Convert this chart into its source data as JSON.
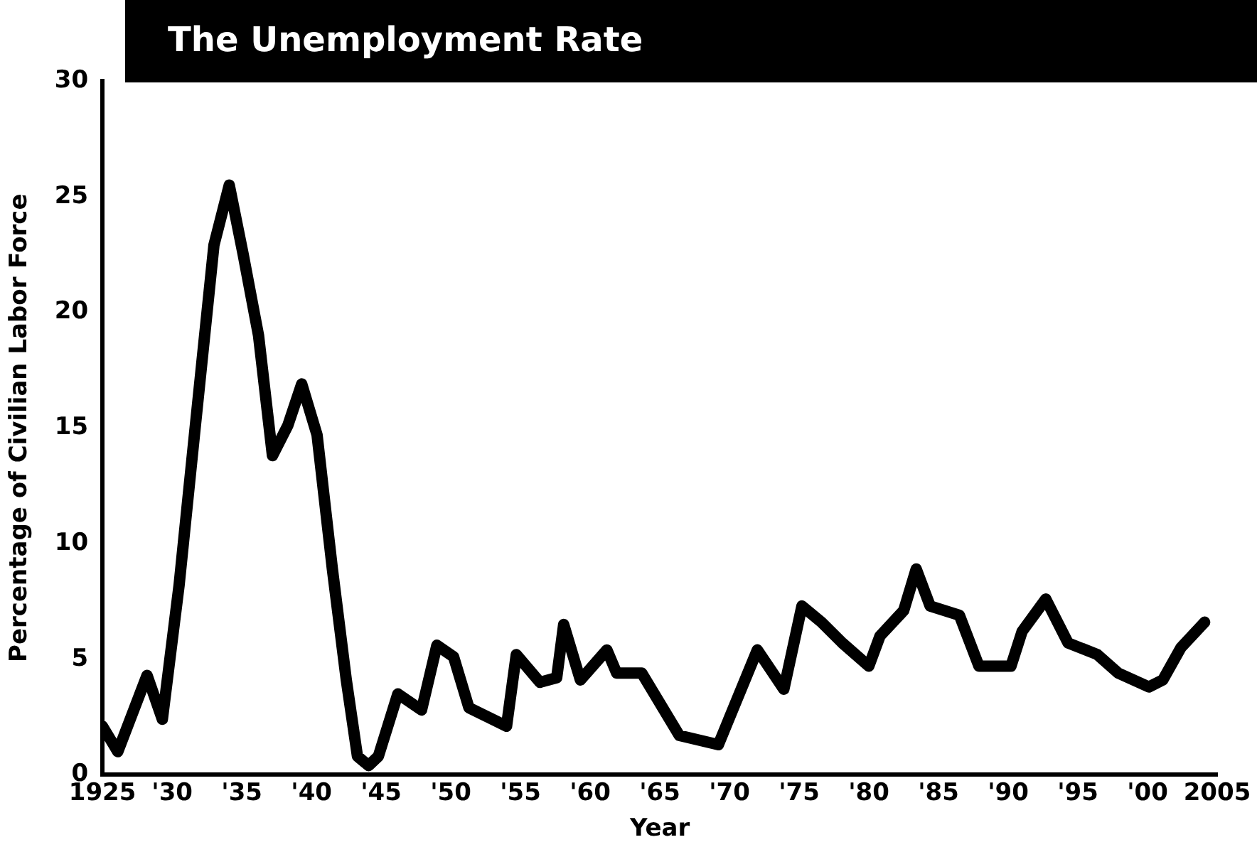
{
  "chart_data": {
    "type": "line",
    "title": "The Unemployment Rate",
    "xlabel": "Year",
    "ylabel": "Percentage of Civilian Labor Force",
    "x": [
      1925,
      1926.1,
      1928.2,
      1929.3,
      1930.5,
      1931.6,
      1933,
      1934.1,
      1935.1,
      1936.2,
      1937.2,
      1938.3,
      1939.3,
      1940.4,
      1941.5,
      1942.5,
      1943.3,
      1944.1,
      1944.8,
      1946.2,
      1947.9,
      1949,
      1950.2,
      1951.3,
      1954,
      1954.7,
      1956.4,
      1957.6,
      1958.1,
      1959.3,
      1961.2,
      1961.9,
      1963.7,
      1966.4,
      1969.2,
      1972,
      1973.9,
      1975.2,
      1976.6,
      1978.1,
      1980,
      1980.8,
      1982.5,
      1983.4,
      1984.4,
      1986.5,
      1987.9,
      1990.2,
      1991,
      1992.7,
      1994.3,
      1996.4,
      1997.9,
      2000.1,
      2001.1,
      2002.4,
      2004.1
    ],
    "values": [
      2.1,
      1.0,
      4.3,
      2.4,
      8.2,
      14.7,
      22.9,
      25.5,
      22.5,
      19.0,
      13.8,
      15.1,
      16.9,
      14.7,
      8.9,
      4.1,
      0.8,
      0.4,
      0.8,
      3.5,
      2.8,
      5.6,
      5.1,
      2.9,
      2.1,
      5.2,
      4.0,
      4.2,
      6.5,
      4.1,
      5.4,
      4.4,
      4.4,
      1.7,
      1.3,
      5.4,
      3.7,
      7.3,
      6.6,
      5.7,
      4.7,
      6.0,
      7.1,
      8.9,
      7.3,
      6.9,
      4.7,
      4.7,
      6.2,
      7.6,
      5.7,
      5.2,
      4.4,
      3.8,
      4.1,
      5.5,
      6.6
    ],
    "color": "#000000",
    "marker": "none",
    "line_style": "solid",
    "legend": false,
    "grid": false,
    "xlim": [
      1925,
      2005
    ],
    "xticks": [
      1925,
      {
        "value": 1930,
        "label": "'30"
      },
      {
        "value": 1935,
        "label": "'35"
      },
      {
        "value": 1940,
        "label": "'40"
      },
      {
        "value": 1945,
        "label": "'45"
      },
      {
        "value": 1950,
        "label": "'50"
      },
      {
        "value": 1955,
        "label": "'55"
      },
      {
        "value": 1960,
        "label": "'60"
      },
      {
        "value": 1965,
        "label": "'65"
      },
      {
        "value": 1970,
        "label": "'70"
      },
      {
        "value": 1975,
        "label": "'75"
      },
      {
        "value": 1980,
        "label": "'80"
      },
      {
        "value": 1985,
        "label": "'85"
      },
      {
        "value": 1990,
        "label": "'90"
      },
      {
        "value": 1995,
        "label": "'95"
      },
      {
        "value": 2000,
        "label": "'00"
      },
      2005
    ],
    "ylim": [
      0,
      30
    ],
    "yticks": [
      0,
      5,
      10,
      15,
      20,
      25,
      30
    ]
  }
}
